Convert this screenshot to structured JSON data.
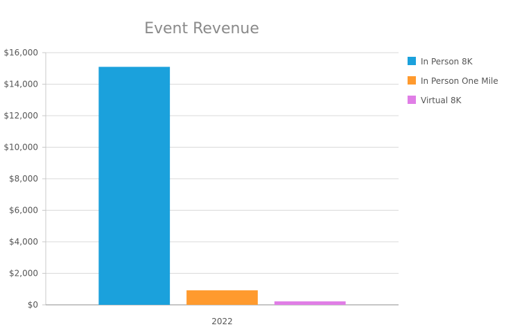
{
  "chart_data": {
    "type": "bar",
    "title": "Event Revenue",
    "categories": [
      "2022"
    ],
    "series": [
      {
        "name": "In Person 8K",
        "values": [
          15100
        ],
        "color": "#1ba1dc"
      },
      {
        "name": "In Person One Mile",
        "values": [
          920
        ],
        "color": "#ff9a2e"
      },
      {
        "name": "Virtual 8K",
        "values": [
          220
        ],
        "color": "#e07ee6"
      }
    ],
    "ylim": [
      0,
      16000
    ],
    "yticks": [
      0,
      2000,
      4000,
      6000,
      8000,
      10000,
      12000,
      14000,
      16000
    ],
    "ytick_labels": [
      "$0",
      "$2,000",
      "$4,000",
      "$6,000",
      "$8,000",
      "$10,000",
      "$12,000",
      "$14,000",
      "$16,000"
    ],
    "grid": true,
    "legend": "right",
    "xlabel": "",
    "ylabel": ""
  }
}
